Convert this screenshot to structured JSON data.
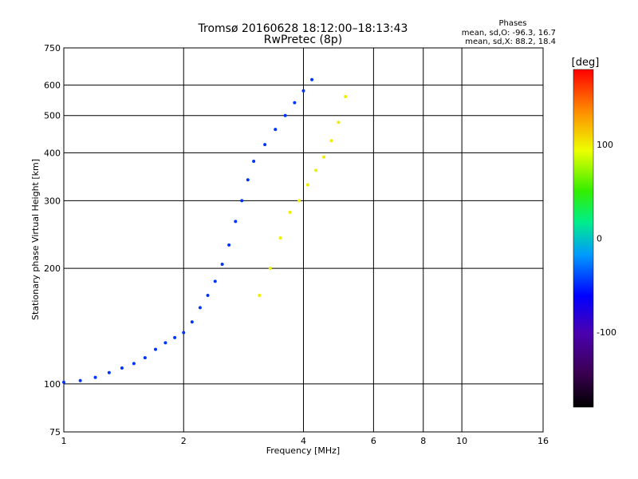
{
  "chart_data": {
    "type": "scatter",
    "title": "Tromsø 20160628 18:12:00–18:13:43",
    "subtitle": "RwPretec (8p)",
    "xlabel": "Frequency [MHz]",
    "ylabel": "Stationary phase Virtual Height [km]",
    "x_scale": "log",
    "y_scale": "log",
    "xlim": [
      1,
      16
    ],
    "ylim": [
      75,
      750
    ],
    "x_ticks": [
      1,
      2,
      4,
      6,
      8,
      10,
      16
    ],
    "x_tick_labels": [
      "1",
      "2",
      "4",
      "6",
      "8",
      "10",
      "16"
    ],
    "y_ticks": [
      75,
      100,
      200,
      300,
      400,
      500,
      600,
      750
    ],
    "y_tick_labels": [
      "75",
      "100",
      "200",
      "300",
      "400",
      "500",
      "600",
      "750"
    ],
    "grid": true,
    "phases_legend": {
      "title": "Phases",
      "line_o": "mean, sd,O: -96.3, 16.7",
      "line_x": "mean, sd,X: 88.2, 18.4"
    },
    "colorbar": {
      "label": "[deg]",
      "ticks": [
        100,
        0,
        -100
      ],
      "tick_labels": [
        "100",
        "0",
        "-100"
      ],
      "range": [
        -180,
        180
      ]
    },
    "series": [
      {
        "mode": "O",
        "phase_deg": -96,
        "color": "#0033ff",
        "points": [
          [
            1.0,
            101
          ],
          [
            1.1,
            102
          ],
          [
            1.2,
            104
          ],
          [
            1.3,
            107
          ],
          [
            1.4,
            110
          ],
          [
            1.5,
            113
          ],
          [
            1.6,
            117
          ],
          [
            1.7,
            123
          ],
          [
            1.8,
            128
          ],
          [
            1.9,
            132
          ],
          [
            2.0,
            136
          ],
          [
            2.1,
            145
          ],
          [
            2.2,
            158
          ],
          [
            2.3,
            170
          ],
          [
            2.4,
            185
          ],
          [
            2.5,
            205
          ],
          [
            2.6,
            230
          ],
          [
            2.7,
            265
          ],
          [
            2.8,
            300
          ],
          [
            2.9,
            340
          ],
          [
            3.0,
            380
          ],
          [
            3.2,
            420
          ],
          [
            3.4,
            460
          ],
          [
            3.6,
            500
          ],
          [
            3.8,
            540
          ],
          [
            4.0,
            580
          ],
          [
            4.2,
            620
          ]
        ]
      },
      {
        "mode": "X",
        "phase_deg": 88,
        "color": "#eeee00",
        "points": [
          [
            3.1,
            170
          ],
          [
            3.3,
            200
          ],
          [
            3.5,
            240
          ],
          [
            3.7,
            280
          ],
          [
            3.9,
            300
          ],
          [
            4.1,
            330
          ],
          [
            4.3,
            360
          ],
          [
            4.5,
            390
          ],
          [
            4.7,
            430
          ],
          [
            4.9,
            480
          ],
          [
            5.1,
            560
          ]
        ]
      }
    ]
  }
}
